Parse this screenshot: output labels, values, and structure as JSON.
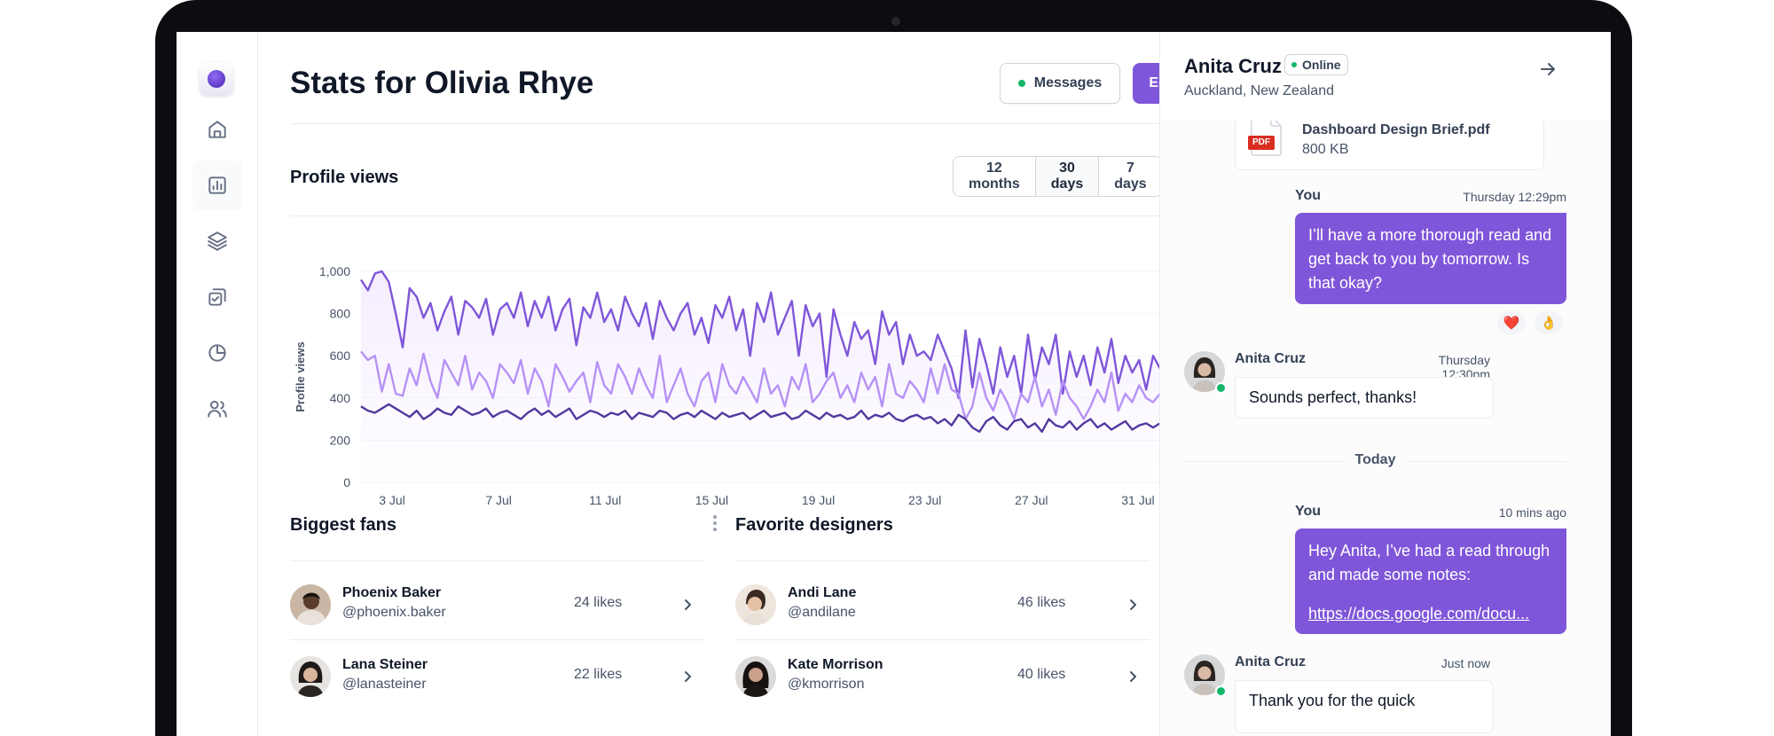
{
  "page": {
    "title": "Stats for Olivia Rhye",
    "messages_label": "Messages",
    "edit_label": "Edit"
  },
  "sidebar": {
    "items": [
      {
        "icon": "home-icon"
      },
      {
        "icon": "bar-chart-icon",
        "active": true
      },
      {
        "icon": "layers-icon"
      },
      {
        "icon": "check-square-icon"
      },
      {
        "icon": "pie-chart-icon"
      },
      {
        "icon": "users-icon"
      }
    ]
  },
  "profile_views": {
    "title": "Profile views",
    "ranges": [
      "12 months",
      "30 days",
      "7 days"
    ],
    "active_range": "30 days"
  },
  "chart_data": {
    "type": "line",
    "title": "",
    "ylabel": "Profile views",
    "xlabel": "",
    "ylim": [
      0,
      1000
    ],
    "yticks": [
      "0",
      "200",
      "400",
      "600",
      "800",
      "1,000"
    ],
    "xticks": [
      "3 Jul",
      "7 Jul",
      "11 Jul",
      "15 Jul",
      "19 Jul",
      "23 Jul",
      "27 Jul",
      "31 Jul"
    ],
    "grid": true,
    "series": [
      {
        "color": "#7f56d9",
        "values": [
          960,
          910,
          990,
          1000,
          950,
          800,
          640,
          920,
          880,
          780,
          850,
          720,
          810,
          880,
          700,
          860,
          830,
          780,
          870,
          700,
          820,
          850,
          780,
          900,
          740,
          860,
          780,
          880,
          720,
          820,
          870,
          650,
          830,
          780,
          900,
          760,
          820,
          720,
          880,
          800,
          740,
          850,
          680,
          860,
          780,
          720,
          800,
          850,
          700,
          780,
          660,
          840,
          780,
          880,
          720,
          820,
          600,
          850,
          760,
          900,
          700,
          780,
          860,
          600,
          840,
          740,
          800,
          500,
          820,
          700,
          600,
          760,
          680,
          720,
          560,
          810,
          700,
          760,
          560,
          700,
          600,
          620,
          580,
          700,
          620,
          540,
          400,
          720,
          450,
          680,
          560,
          420,
          640,
          500,
          600,
          420,
          700,
          480,
          640,
          560,
          700,
          420,
          620,
          500,
          600,
          460,
          640,
          520,
          680,
          470,
          600,
          520,
          580,
          440,
          600,
          540,
          580,
          480,
          560,
          530,
          560
        ]
      },
      {
        "color": "#b692f6",
        "values": [
          620,
          580,
          600,
          430,
          560,
          420,
          410,
          540,
          460,
          610,
          480,
          400,
          580,
          520,
          460,
          600,
          440,
          520,
          480,
          400,
          560,
          520,
          470,
          580,
          420,
          540,
          480,
          360,
          560,
          500,
          430,
          480,
          520,
          380,
          570,
          460,
          420,
          560,
          500,
          420,
          540,
          460,
          400,
          600,
          380,
          460,
          540,
          420,
          360,
          480,
          520,
          380,
          560,
          460,
          420,
          500,
          440,
          380,
          540,
          420,
          460,
          360,
          500,
          440,
          560,
          380,
          420,
          480,
          520,
          400,
          460,
          380,
          520,
          440,
          500,
          360,
          560,
          420,
          400,
          480,
          440,
          380,
          540,
          420,
          560,
          440,
          420,
          300,
          360,
          520,
          400,
          340,
          440,
          380,
          300,
          420,
          380,
          500,
          360,
          440,
          320,
          480,
          400,
          360,
          300,
          360,
          440,
          380,
          520,
          340,
          420,
          380,
          460,
          400,
          380,
          420,
          440,
          360,
          480,
          380,
          370
        ]
      },
      {
        "color": "#53389e",
        "values": [
          360,
          340,
          330,
          350,
          370,
          350,
          330,
          310,
          340,
          300,
          320,
          350,
          330,
          320,
          360,
          340,
          320,
          330,
          350,
          310,
          330,
          340,
          320,
          300,
          330,
          350,
          320,
          340,
          310,
          330,
          350,
          300,
          320,
          340,
          330,
          310,
          330,
          320,
          340,
          300,
          330,
          320,
          310,
          340,
          330,
          300,
          320,
          330,
          310,
          340,
          320,
          300,
          330,
          310,
          320,
          330,
          300,
          320,
          340,
          310,
          320,
          330,
          300,
          310,
          340,
          320,
          300,
          330,
          310,
          320,
          300,
          310,
          340,
          300,
          320,
          310,
          330,
          300,
          290,
          310,
          320,
          300,
          310,
          280,
          300,
          270,
          320,
          300,
          260,
          240,
          290,
          310,
          270,
          250,
          290,
          300,
          260,
          280,
          240,
          300,
          270,
          260,
          290,
          250,
          280,
          300,
          260,
          280,
          250,
          270,
          290,
          250,
          270,
          280,
          260,
          280,
          250,
          270,
          280,
          260,
          270
        ]
      }
    ]
  },
  "biggest_fans": {
    "title": "Biggest fans",
    "items": [
      {
        "name": "Phoenix Baker",
        "handle": "@phoenix.baker",
        "likes": "24 likes"
      },
      {
        "name": "Lana Steiner",
        "handle": "@lanasteiner",
        "likes": "22 likes"
      }
    ]
  },
  "favorite_designers": {
    "title": "Favorite designers",
    "items": [
      {
        "name": "Andi Lane",
        "handle": "@andilane",
        "likes": "46 likes"
      },
      {
        "name": "Kate Morrison",
        "handle": "@kmorrison",
        "likes": "40 likes"
      }
    ]
  },
  "chat": {
    "name": "Anita Cruz",
    "status": "Online",
    "location": "Auckland, New Zealand",
    "file": {
      "name": "Dashboard Design Brief.pdf",
      "size": "800 KB",
      "type_label": "PDF"
    },
    "messages": [
      {
        "sender": "You",
        "time": "Thursday 12:29pm",
        "text": "I’ll have a more thorough read and get back to you by tomorrow. Is that okay?"
      },
      {
        "sender": "Anita Cruz",
        "time": "Thursday 12:30pm",
        "text": "Sounds perfect, thanks!"
      },
      {
        "sender": "You",
        "time": "10 mins ago",
        "text": "Hey Anita, I’ve had a read through and made some notes:",
        "link": "https://docs.google.com/docu..."
      },
      {
        "sender": "Anita Cruz",
        "time": "Just now",
        "text": "Thank you for the quick"
      }
    ],
    "reactions": [
      "❤️",
      "👌"
    ],
    "divider": "Today"
  }
}
